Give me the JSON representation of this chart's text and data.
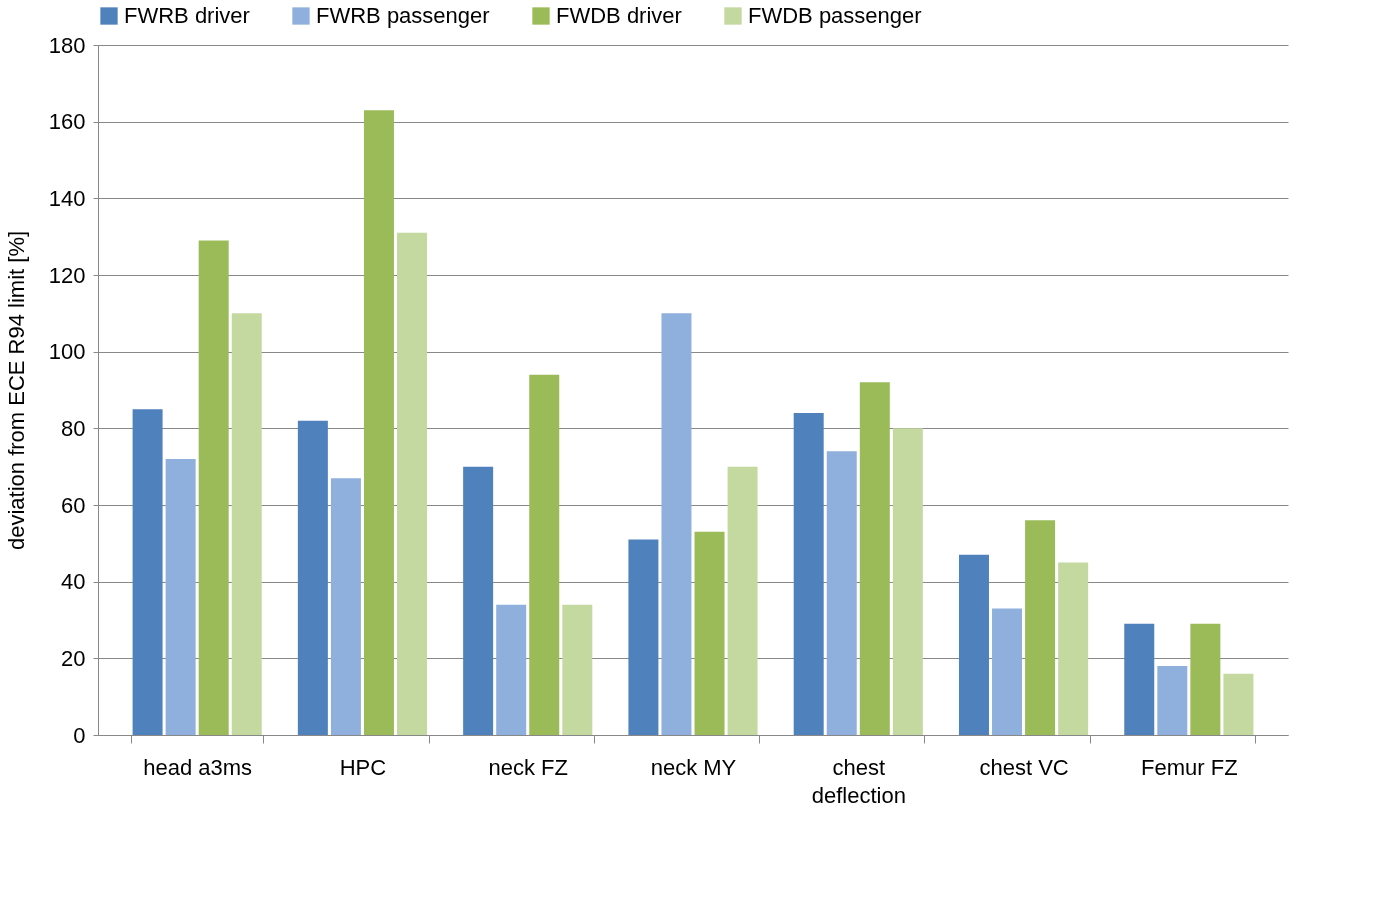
{
  "chart_data": {
    "type": "bar",
    "ylabel": "deviation from ECE R94 limit [%]",
    "categories": [
      "head a3ms",
      "HPC",
      "neck FZ",
      "neck MY",
      "chest deflection",
      "chest VC",
      "Femur FZ"
    ],
    "series": [
      {
        "name": "FWRB driver",
        "color": "#4f81bd",
        "values": [
          85,
          82,
          70,
          51,
          84,
          47,
          29
        ]
      },
      {
        "name": "FWRB passenger",
        "color": "#8fb0dd",
        "values": [
          72,
          67,
          34,
          110,
          74,
          33,
          18
        ]
      },
      {
        "name": "FWDB driver",
        "color": "#9bbb59",
        "values": [
          129,
          163,
          94,
          53,
          92,
          56,
          29
        ]
      },
      {
        "name": "FWDB passenger",
        "color": "#c4d9a0",
        "values": [
          110,
          131,
          34,
          70,
          80,
          45,
          16
        ]
      }
    ],
    "ylim": [
      0,
      180
    ],
    "yticks": [
      0,
      20,
      40,
      60,
      80,
      100,
      120,
      140,
      160,
      180
    ],
    "grid": "y",
    "legend": "top"
  }
}
